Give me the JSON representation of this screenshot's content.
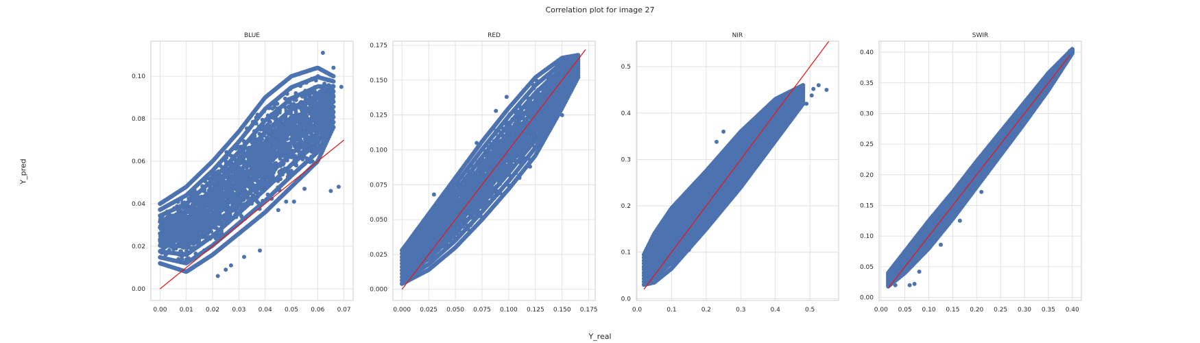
{
  "figure": {
    "suptitle": "Correlation plot for image 27",
    "xlabel": "Y_real",
    "ylabel": "Y_pred"
  },
  "colors": {
    "points": "#4c72b0",
    "fit_line": "#e41a1c",
    "grid": "#dcdcdc",
    "axes_edge": "#cccccc",
    "background": "#ffffff"
  },
  "chart_data": [
    {
      "type": "scatter",
      "title": "BLUE",
      "xlim": [
        -0.0035,
        0.0735
      ],
      "ylim": [
        -0.0055,
        0.1165
      ],
      "xticks": [
        0.0,
        0.01,
        0.02,
        0.03,
        0.04,
        0.05,
        0.06,
        0.07
      ],
      "xtick_labels": [
        "0.00",
        "0.01",
        "0.02",
        "0.03",
        "0.04",
        "0.05",
        "0.06",
        "0.07"
      ],
      "yticks": [
        0.0,
        0.02,
        0.04,
        0.06,
        0.08,
        0.1
      ],
      "ytick_labels": [
        "0.00",
        "0.02",
        "0.04",
        "0.06",
        "0.08",
        "0.10"
      ],
      "identity_line": [
        [
          0.0,
          0.0
        ],
        [
          0.07,
          0.07
        ]
      ],
      "point_cloud": {
        "x_min": 0.0,
        "x_max": 0.066,
        "lower_edge": [
          [
            0.0,
            0.012
          ],
          [
            0.01,
            0.008
          ],
          [
            0.02,
            0.016
          ],
          [
            0.03,
            0.026
          ],
          [
            0.04,
            0.036
          ],
          [
            0.05,
            0.048
          ],
          [
            0.06,
            0.06
          ],
          [
            0.066,
            0.076
          ]
        ],
        "upper_edge": [
          [
            0.0,
            0.04
          ],
          [
            0.01,
            0.048
          ],
          [
            0.02,
            0.06
          ],
          [
            0.03,
            0.074
          ],
          [
            0.04,
            0.09
          ],
          [
            0.05,
            0.1
          ],
          [
            0.06,
            0.104
          ],
          [
            0.066,
            0.1
          ]
        ]
      },
      "outliers": [
        [
          0.065,
          0.046
        ],
        [
          0.068,
          0.048
        ],
        [
          0.062,
          0.111
        ],
        [
          0.066,
          0.104
        ],
        [
          0.045,
          0.037
        ],
        [
          0.048,
          0.041
        ],
        [
          0.055,
          0.047
        ],
        [
          0.051,
          0.041
        ],
        [
          0.022,
          0.006
        ],
        [
          0.025,
          0.009
        ],
        [
          0.032,
          0.015
        ],
        [
          0.027,
          0.011
        ],
        [
          0.069,
          0.095
        ],
        [
          0.058,
          0.06
        ],
        [
          0.047,
          0.066
        ],
        [
          0.038,
          0.018
        ]
      ]
    },
    {
      "type": "scatter",
      "title": "RED",
      "xlim": [
        -0.0085,
        0.181
      ],
      "ylim": [
        -0.008,
        0.178
      ],
      "xticks": [
        0.0,
        0.025,
        0.05,
        0.075,
        0.1,
        0.125,
        0.15,
        0.175
      ],
      "xtick_labels": [
        "0.000",
        "0.025",
        "0.050",
        "0.075",
        "0.100",
        "0.125",
        "0.150",
        "0.175"
      ],
      "yticks": [
        0.0,
        0.025,
        0.05,
        0.075,
        0.1,
        0.125,
        0.15,
        0.175
      ],
      "ytick_labels": [
        "0.000",
        "0.025",
        "0.050",
        "0.075",
        "0.100",
        "0.125",
        "0.150",
        "0.175"
      ],
      "identity_line": [
        [
          0.0,
          0.0
        ],
        [
          0.172,
          0.172
        ]
      ],
      "point_cloud": {
        "x_min": 0.0,
        "x_max": 0.165,
        "lower_edge": [
          [
            0.0,
            0.004
          ],
          [
            0.025,
            0.014
          ],
          [
            0.05,
            0.03
          ],
          [
            0.075,
            0.05
          ],
          [
            0.1,
            0.072
          ],
          [
            0.125,
            0.096
          ],
          [
            0.15,
            0.13
          ],
          [
            0.165,
            0.152
          ]
        ],
        "upper_edge": [
          [
            0.0,
            0.028
          ],
          [
            0.025,
            0.054
          ],
          [
            0.05,
            0.08
          ],
          [
            0.075,
            0.106
          ],
          [
            0.1,
            0.13
          ],
          [
            0.125,
            0.152
          ],
          [
            0.15,
            0.166
          ],
          [
            0.165,
            0.168
          ]
        ]
      },
      "outliers": [
        [
          0.16,
          0.148
        ],
        [
          0.158,
          0.154
        ],
        [
          0.098,
          0.138
        ],
        [
          0.088,
          0.128
        ],
        [
          0.07,
          0.105
        ],
        [
          0.058,
          0.053
        ],
        [
          0.11,
          0.08
        ],
        [
          0.12,
          0.088
        ],
        [
          0.15,
          0.125
        ],
        [
          0.03,
          0.068
        ],
        [
          0.145,
          0.16
        ],
        [
          0.163,
          0.166
        ]
      ]
    },
    {
      "type": "scatter",
      "title": "NIR",
      "xlim": [
        -0.002,
        0.583
      ],
      "ylim": [
        -0.004,
        0.555
      ],
      "xticks": [
        0.0,
        0.1,
        0.2,
        0.3,
        0.4,
        0.5
      ],
      "xtick_labels": [
        "0.0",
        "0.1",
        "0.2",
        "0.3",
        "0.4",
        "0.5"
      ],
      "yticks": [
        0.0,
        0.1,
        0.2,
        0.3,
        0.4,
        0.5
      ],
      "ytick_labels": [
        "0.0",
        "0.1",
        "0.2",
        "0.3",
        "0.4",
        "0.5"
      ],
      "identity_line": [
        [
          0.02,
          0.02
        ],
        [
          0.555,
          0.555
        ]
      ],
      "point_cloud": {
        "x_min": 0.02,
        "x_max": 0.48,
        "lower_edge": [
          [
            0.02,
            0.03
          ],
          [
            0.05,
            0.035
          ],
          [
            0.1,
            0.065
          ],
          [
            0.2,
            0.15
          ],
          [
            0.3,
            0.24
          ],
          [
            0.4,
            0.34
          ],
          [
            0.48,
            0.42
          ]
        ],
        "upper_edge": [
          [
            0.02,
            0.095
          ],
          [
            0.05,
            0.14
          ],
          [
            0.1,
            0.195
          ],
          [
            0.2,
            0.275
          ],
          [
            0.3,
            0.36
          ],
          [
            0.4,
            0.43
          ],
          [
            0.48,
            0.46
          ]
        ]
      },
      "outliers": [
        [
          0.548,
          0.45
        ],
        [
          0.525,
          0.46
        ],
        [
          0.51,
          0.452
        ],
        [
          0.505,
          0.438
        ],
        [
          0.49,
          0.42
        ],
        [
          0.47,
          0.41
        ],
        [
          0.25,
          0.36
        ],
        [
          0.23,
          0.338
        ],
        [
          0.15,
          0.105
        ],
        [
          0.35,
          0.29
        ]
      ]
    },
    {
      "type": "scatter",
      "title": "SWIR",
      "xlim": [
        -0.004,
        0.419
      ],
      "ylim": [
        -0.005,
        0.418
      ],
      "xticks": [
        0.0,
        0.05,
        0.1,
        0.15,
        0.2,
        0.25,
        0.3,
        0.35,
        0.4
      ],
      "xtick_labels": [
        "0.00",
        "0.05",
        "0.10",
        "0.15",
        "0.20",
        "0.25",
        "0.30",
        "0.35",
        "0.40"
      ],
      "yticks": [
        0.0,
        0.05,
        0.1,
        0.15,
        0.2,
        0.25,
        0.3,
        0.35,
        0.4
      ],
      "ytick_labels": [
        "0.00",
        "0.05",
        "0.10",
        "0.15",
        "0.20",
        "0.25",
        "0.30",
        "0.35",
        "0.40"
      ],
      "identity_line": [
        [
          0.015,
          0.015
        ],
        [
          0.395,
          0.395
        ]
      ],
      "point_cloud": {
        "x_min": 0.015,
        "x_max": 0.4,
        "lower_edge": [
          [
            0.015,
            0.018
          ],
          [
            0.05,
            0.04
          ],
          [
            0.1,
            0.08
          ],
          [
            0.15,
            0.128
          ],
          [
            0.2,
            0.18
          ],
          [
            0.25,
            0.232
          ],
          [
            0.3,
            0.284
          ],
          [
            0.35,
            0.338
          ],
          [
            0.4,
            0.398
          ]
        ],
        "upper_edge": [
          [
            0.015,
            0.04
          ],
          [
            0.05,
            0.075
          ],
          [
            0.1,
            0.125
          ],
          [
            0.15,
            0.172
          ],
          [
            0.2,
            0.222
          ],
          [
            0.25,
            0.27
          ],
          [
            0.3,
            0.318
          ],
          [
            0.35,
            0.366
          ],
          [
            0.4,
            0.405
          ]
        ]
      },
      "outliers": [
        [
          0.165,
          0.125
        ],
        [
          0.125,
          0.086
        ],
        [
          0.08,
          0.042
        ],
        [
          0.07,
          0.022
        ],
        [
          0.06,
          0.02
        ],
        [
          0.395,
          0.402
        ],
        [
          0.03,
          0.02
        ],
        [
          0.21,
          0.172
        ]
      ]
    }
  ]
}
